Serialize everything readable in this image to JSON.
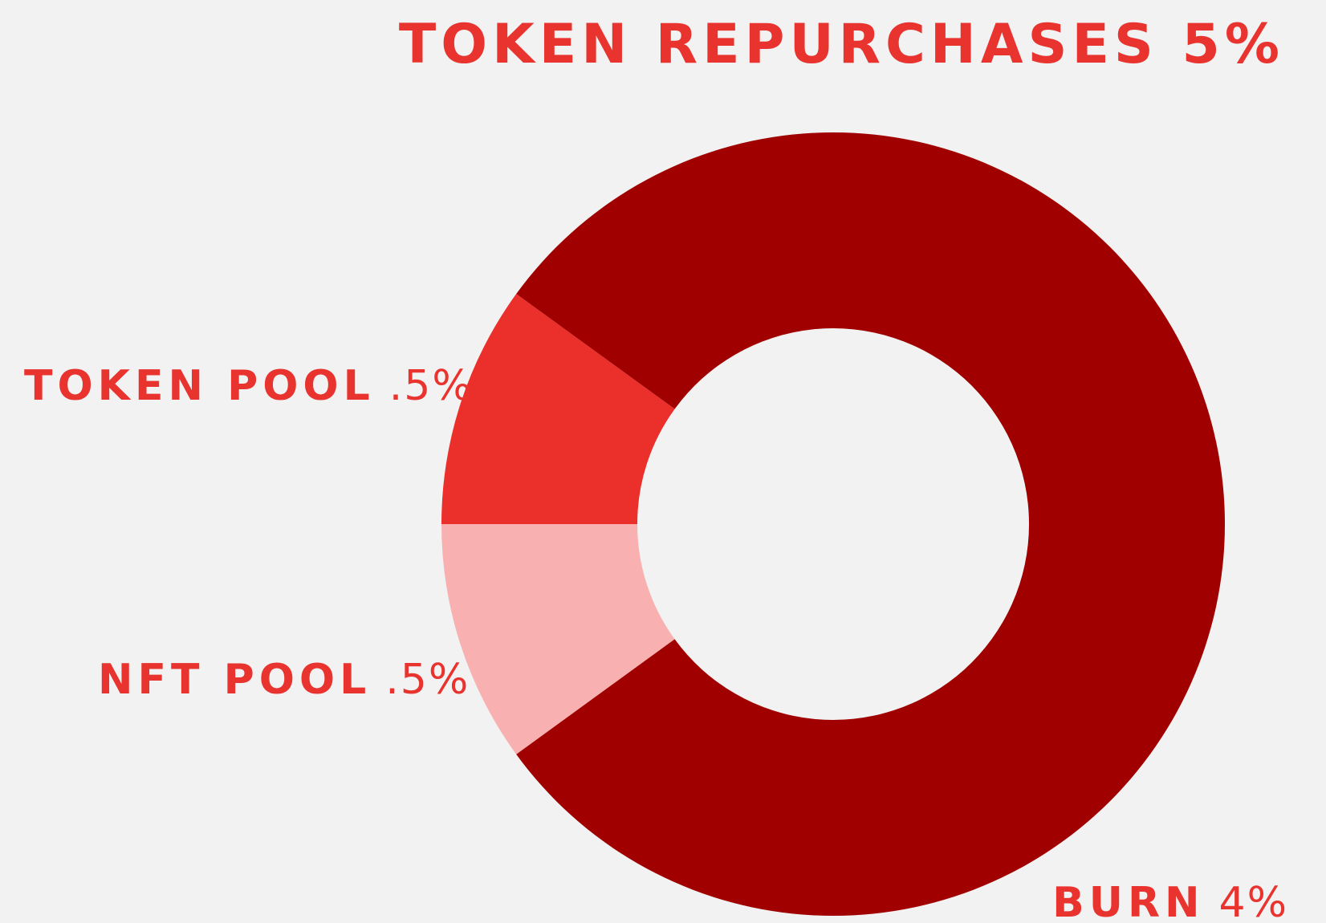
{
  "chart_data": {
    "type": "donut",
    "title": "TOKEN REPURCHASES 5%",
    "categories": [
      "TOKEN POOL",
      "NFT POOL",
      "BURN"
    ],
    "values": [
      0.5,
      0.5,
      4
    ],
    "value_labels": [
      ".5%",
      ".5%",
      "4%"
    ],
    "colors": [
      "#eb2f2b",
      "#f9b0b0",
      "#a00000"
    ]
  }
}
